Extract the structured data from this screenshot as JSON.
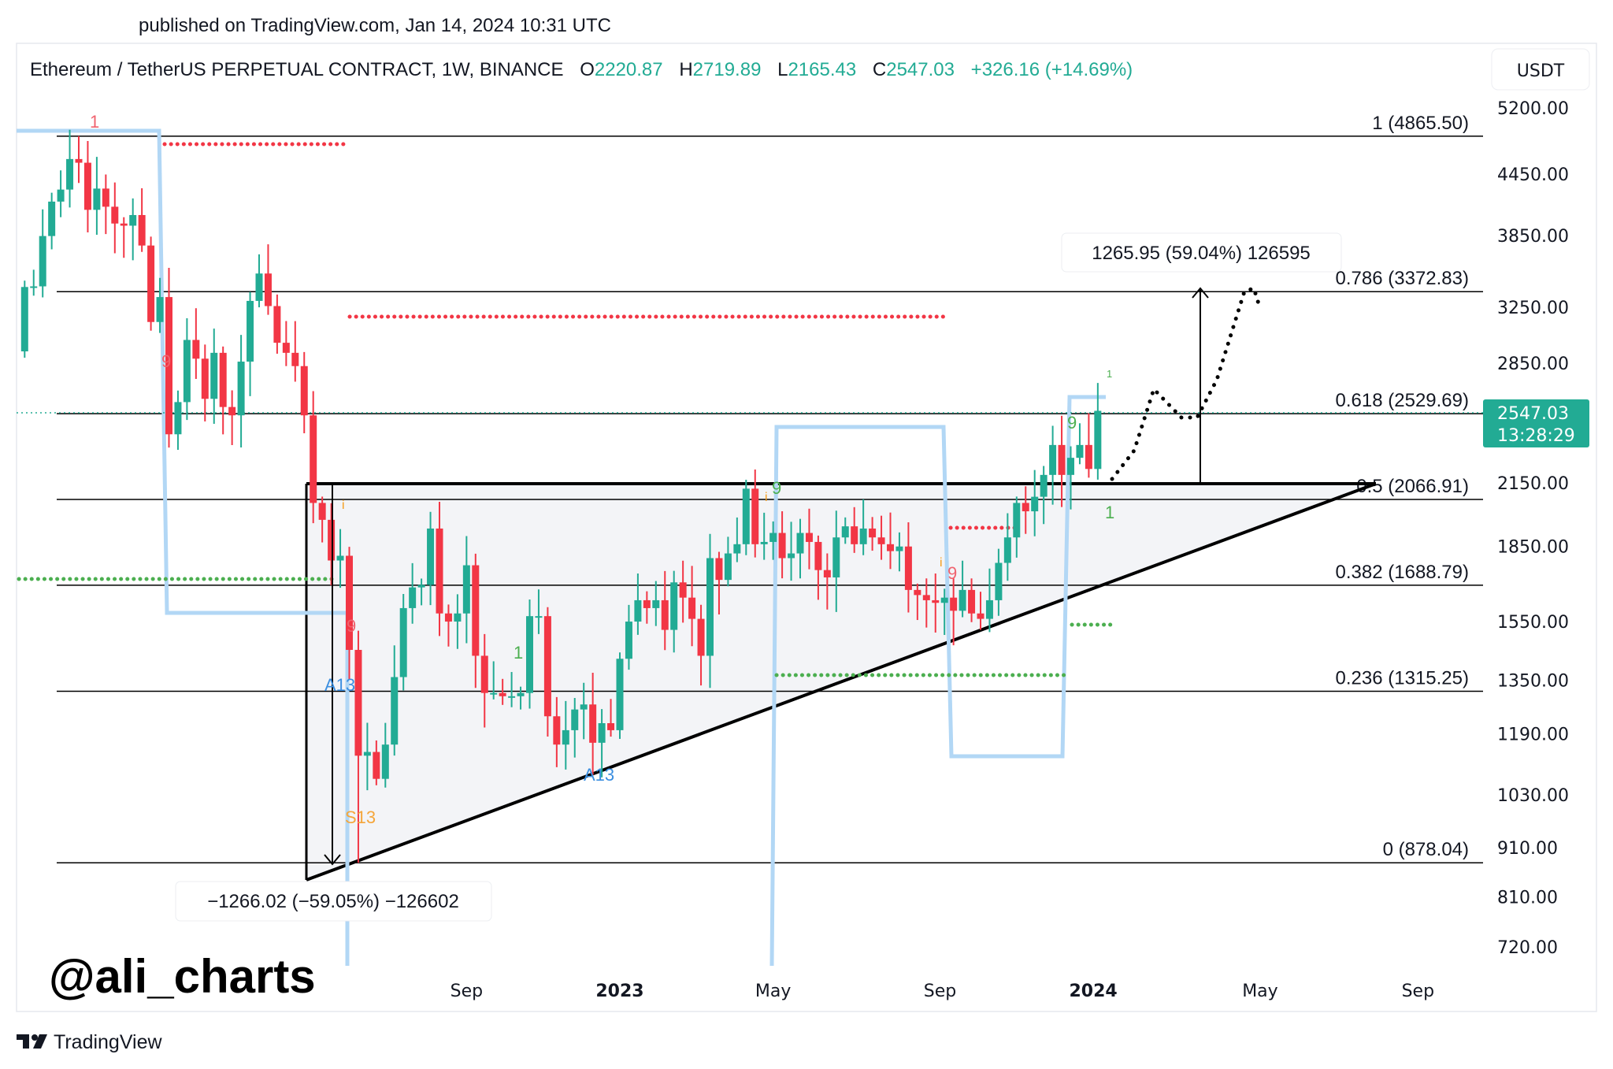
{
  "published": "published on TradingView.com, Jan 14, 2024 10:31 UTC",
  "header": {
    "symbol": "Ethereum / TetherUS PERPETUAL CONTRACT, 1W, BINANCE",
    "o_label": "O",
    "o": "2220.87",
    "h_label": "H",
    "h": "2719.89",
    "l_label": "L",
    "l": "2165.43",
    "c_label": "C",
    "c": "2547.03",
    "change": "+326.16 (+14.69%)"
  },
  "currency": "USDT",
  "last_price": {
    "price": "2547.03",
    "countdown": "13:28:29"
  },
  "watermark": "@ali_charts",
  "footer_brand": "TradingView",
  "colors": {
    "up": "#22ab94",
    "down": "#f23645",
    "accent": "#22ab94",
    "projection": "#b2d7f5"
  },
  "chart_data": {
    "type": "candlestick",
    "title": "Ethereum / TetherUS PERPETUAL CONTRACT, 1W, BINANCE",
    "scale": "log",
    "ylim": [
      680,
      5400
    ],
    "y_ticks": [
      "5200.00",
      "4450.00",
      "3850.00",
      "3250.00",
      "2850.00",
      "2150.00",
      "1850.00",
      "1550.00",
      "1350.00",
      "1190.00",
      "1030.00",
      "910.00",
      "810.00",
      "720.00"
    ],
    "x_ticks": [
      {
        "label": "Sep",
        "week": 48,
        "bold": false
      },
      {
        "label": "2023",
        "week": 65,
        "bold": true
      },
      {
        "label": "May",
        "week": 82,
        "bold": false
      },
      {
        "label": "Sep",
        "week": 100.5,
        "bold": false
      },
      {
        "label": "2024",
        "week": 117.5,
        "bold": true
      },
      {
        "label": "May",
        "week": 136,
        "bold": false
      },
      {
        "label": "Sep",
        "week": 153.5,
        "bold": false
      }
    ],
    "first_week": "2021-09-27",
    "first_open": 2930,
    "closes": [
      3410,
      3415,
      3845,
      4170,
      4290,
      4610,
      4570,
      4090,
      4300,
      4120,
      3960,
      3940,
      4040,
      3760,
      3140,
      3330,
      2410,
      2600,
      3010,
      2880,
      2620,
      2920,
      2570,
      2520,
      2860,
      3300,
      3520,
      3260,
      2990,
      2920,
      2830,
      2520,
      2050,
      1970,
      1790,
      1810,
      1450,
      1130,
      1140,
      1070,
      1160,
      1360,
      1600,
      1680,
      1690,
      1930,
      1580,
      1550,
      1580,
      1770,
      1430,
      1310,
      1310,
      1300,
      1300,
      1310,
      1570,
      1570,
      1240,
      1160,
      1200,
      1260,
      1275,
      1165,
      1220,
      1200,
      1420,
      1550,
      1630,
      1600,
      1630,
      1520,
      1700,
      1640,
      1560,
      1430,
      1800,
      1710,
      1820,
      1860,
      2120,
      1860,
      1870,
      1910,
      1800,
      1820,
      1910,
      1870,
      1750,
      1720,
      1890,
      1940,
      1860,
      1930,
      1890,
      1860,
      1830,
      1850,
      1670,
      1650,
      1630,
      1620,
      1640,
      1590,
      1670,
      1580,
      1560,
      1630,
      1780,
      1890,
      2050,
      2010,
      2080,
      2190,
      2350,
      2190,
      2280,
      2350,
      2220.87,
      2547.03
    ],
    "last_candle": {
      "o": 2220.87,
      "h": 2719.89,
      "l": 2165.43,
      "c": 2547.03
    },
    "fib_levels": [
      {
        "ratio": "1",
        "price": 4865.5,
        "label": "1 (4865.50)"
      },
      {
        "ratio": "0.786",
        "price": 3372.83,
        "label": "0.786 (3372.83)"
      },
      {
        "ratio": "0.618",
        "price": 2529.69,
        "label": "0.618 (2529.69)"
      },
      {
        "ratio": "0.5",
        "price": 2066.91,
        "label": "0.5 (2066.91)"
      },
      {
        "ratio": "0.382",
        "price": 1688.79,
        "label": "0.382 (1688.79)"
      },
      {
        "ratio": "0.236",
        "price": 1315.25,
        "label": "0.236 (1315.25)"
      },
      {
        "ratio": "0",
        "price": 878.04,
        "label": "0 (878.04)"
      }
    ],
    "measure_up": "1265.95 (59.04%) 126595",
    "measure_down": "−1266.02 (−59.05%) −126602",
    "annotations": [
      "1",
      "9",
      "i",
      "9",
      "A13",
      "S13",
      "1",
      "A13",
      "9",
      "i",
      "i",
      "9",
      "9",
      "1",
      "1"
    ]
  }
}
